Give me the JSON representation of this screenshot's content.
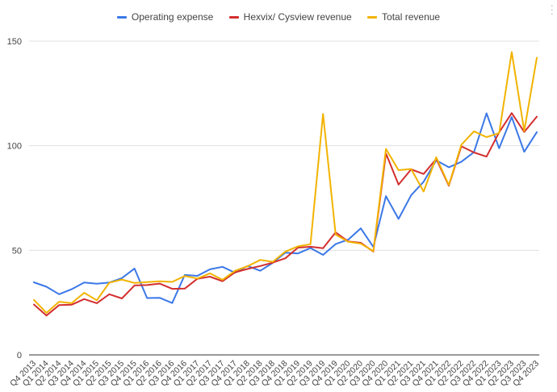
{
  "colors": {
    "operating_expense": "#3b78e7",
    "hexvix_revenue": "#d32f2f",
    "total_revenue": "#f2b300",
    "grid": "#e0e0e0",
    "axis": "#333333",
    "text": "#444444"
  },
  "legend": {
    "items": [
      {
        "label": "Operating expense",
        "color_key": "operating_expense"
      },
      {
        "label": "Hexvix/ Cysview revenue",
        "color_key": "hexvix_revenue"
      },
      {
        "label": "Total revenue",
        "color_key": "total_revenue"
      }
    ]
  },
  "menu": {
    "icon": "more-vert-icon"
  },
  "chart_data": {
    "type": "line",
    "title": "",
    "xlabel": "",
    "ylabel": "",
    "ylim": [
      0,
      150
    ],
    "yticks": [
      0,
      50,
      100,
      150
    ],
    "grid": true,
    "legend_position": "top",
    "categories": [
      "Q4 2013",
      "Q1 2014",
      "Q2 2014",
      "Q3 2014",
      "Q4 2014",
      "Q1 2015",
      "Q2 2015",
      "Q3 2015",
      "Q4 2015",
      "Q1 2016",
      "Q2 2016",
      "Q3 2016",
      "Q4 2016",
      "Q1 2017",
      "Q2 2017",
      "Q3 2017",
      "Q4 2017",
      "Q1 2018",
      "Q2 2018",
      "Q3 2018",
      "Q4 2018",
      "Q1 2019",
      "Q2 2019",
      "Q3 2019",
      "Q4 2019",
      "Q1 2020",
      "Q2 2020",
      "Q3 2020",
      "Q4 2020",
      "Q1 2021",
      "Q2 2021",
      "Q3 2021",
      "Q4 2021",
      "Q1 2022",
      "Q2 2022",
      "Q3 2022",
      "Q4 2022",
      "Q1 2023",
      "Q2 2023",
      "Q3 2023",
      "Q4 2023"
    ],
    "series": [
      {
        "name": "Operating expense",
        "color_key": "operating_expense",
        "values": [
          34.7,
          32.6,
          29.0,
          31.4,
          34.6,
          34.0,
          34.6,
          36.7,
          41.3,
          27.2,
          27.3,
          24.8,
          38.2,
          37.8,
          40.9,
          42.1,
          39.3,
          42.5,
          40.2,
          44.0,
          48.9,
          48.5,
          51.1,
          47.8,
          53.0,
          55.1,
          60.5,
          51.6,
          75.9,
          65.0,
          76.3,
          82.8,
          93.0,
          89.7,
          92.3,
          96.9,
          115.5,
          98.8,
          113.7,
          97.1,
          106.5
        ]
      },
      {
        "name": "Hexvix/ Cysview revenue",
        "color_key": "hexvix_revenue",
        "values": [
          24.1,
          18.8,
          23.8,
          24.0,
          26.7,
          24.7,
          29.0,
          27.0,
          33.2,
          33.4,
          34.1,
          31.6,
          31.7,
          36.4,
          37.4,
          35.2,
          39.5,
          41.1,
          42.5,
          44.1,
          46.2,
          51.3,
          51.7,
          51.0,
          58.6,
          54.2,
          53.6,
          49.4,
          96.3,
          81.4,
          88.7,
          86.5,
          93.7,
          80.9,
          99.7,
          96.8,
          94.8,
          106.4,
          115.6,
          106.6,
          113.9
        ]
      },
      {
        "name": "Total revenue",
        "color_key": "total_revenue",
        "values": [
          26.3,
          20.1,
          25.4,
          24.7,
          29.7,
          26.1,
          34.5,
          36.0,
          34.4,
          34.8,
          35.2,
          34.9,
          37.7,
          36.5,
          39.0,
          35.9,
          40.2,
          42.4,
          45.4,
          44.5,
          49.4,
          51.9,
          52.9,
          115.2,
          57.5,
          54.1,
          53.2,
          49.6,
          98.5,
          88.3,
          88.9,
          78.1,
          94.5,
          81.2,
          100.4,
          106.9,
          104.1,
          106.0,
          144.8,
          107.1,
          142.1
        ]
      }
    ]
  }
}
